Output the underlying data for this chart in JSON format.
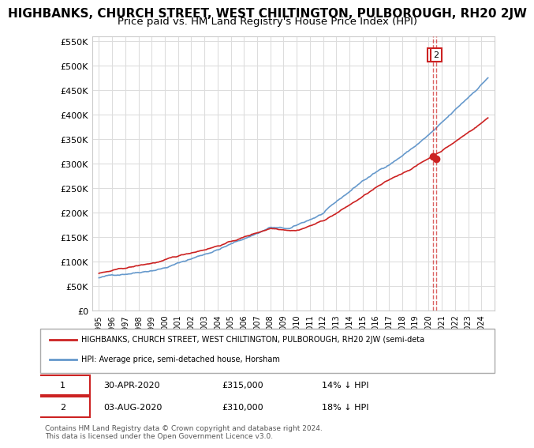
{
  "title": "HIGHBANKS, CHURCH STREET, WEST CHILTINGTON, PULBOROUGH, RH20 2JW",
  "subtitle": "Price paid vs. HM Land Registry's House Price Index (HPI)",
  "ylabel_ticks": [
    0,
    50000,
    100000,
    150000,
    200000,
    250000,
    300000,
    350000,
    400000,
    450000,
    500000,
    550000
  ],
  "ylabel_labels": [
    "£0",
    "£50K",
    "£100K",
    "£150K",
    "£200K",
    "£250K",
    "£300K",
    "£350K",
    "£400K",
    "£450K",
    "£500K",
    "£550K"
  ],
  "x_start_year": 1995,
  "x_end_year": 2025,
  "hpi_color": "#6699cc",
  "price_color": "#cc2222",
  "legend_label_red": "HIGHBANKS, CHURCH STREET, WEST CHILTINGTON, PULBOROUGH, RH20 2JW (semi-deta",
  "legend_label_blue": "HPI: Average price, semi-detached house, Horsham",
  "sale1_date": "30-APR-2020",
  "sale1_price": "£315,000",
  "sale1_pct": "14% ↓ HPI",
  "sale1_year": 2020.33,
  "sale1_value": 315000,
  "sale2_date": "03-AUG-2020",
  "sale2_price": "£310,000",
  "sale2_pct": "18% ↓ HPI",
  "sale2_year": 2020.58,
  "sale2_value": 310000,
  "footnote": "Contains HM Land Registry data © Crown copyright and database right 2024.\nThis data is licensed under the Open Government Licence v3.0.",
  "background_color": "#ffffff",
  "grid_color": "#dddddd",
  "title_fontsize": 11,
  "subtitle_fontsize": 9.5
}
